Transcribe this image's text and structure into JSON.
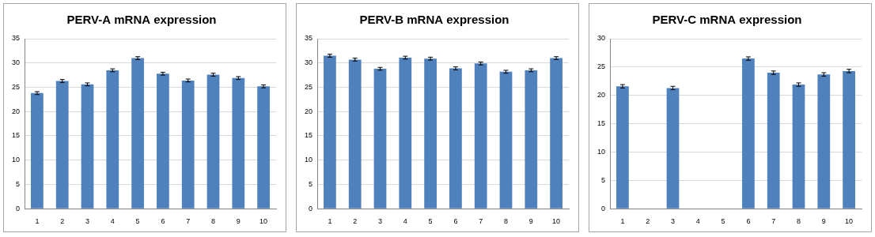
{
  "chart_data": [
    {
      "type": "bar",
      "title": "PERV-A mRNA expression",
      "categories": [
        "1",
        "2",
        "3",
        "4",
        "5",
        "6",
        "7",
        "8",
        "9",
        "10"
      ],
      "values": [
        23.8,
        26.3,
        25.6,
        28.5,
        31.0,
        27.8,
        26.4,
        27.6,
        26.9,
        25.2
      ],
      "errors": [
        0.3,
        0.3,
        0.3,
        0.3,
        0.3,
        0.3,
        0.3,
        0.3,
        0.3,
        0.3
      ],
      "color": "#4f81bd",
      "ylim": [
        0,
        35
      ],
      "yticks": [
        0,
        5,
        10,
        15,
        20,
        25,
        30,
        35
      ],
      "grid": true
    },
    {
      "type": "bar",
      "title": "PERV-B mRNA expression",
      "categories": [
        "1",
        "2",
        "3",
        "4",
        "5",
        "6",
        "7",
        "8",
        "9",
        "10"
      ],
      "values": [
        31.5,
        30.7,
        28.8,
        31.1,
        30.9,
        28.9,
        29.9,
        28.2,
        28.5,
        31.0
      ],
      "errors": [
        0.3,
        0.3,
        0.3,
        0.3,
        0.3,
        0.3,
        0.3,
        0.3,
        0.3,
        0.3
      ],
      "color": "#4f81bd",
      "ylim": [
        0,
        35
      ],
      "yticks": [
        0,
        5,
        10,
        15,
        20,
        25,
        30,
        35
      ],
      "grid": true
    },
    {
      "type": "bar",
      "title": "PERV-C mRNA expression",
      "categories": [
        "1",
        "2",
        "3",
        "4",
        "5",
        "6",
        "7",
        "8",
        "9",
        "10"
      ],
      "values": [
        21.6,
        null,
        21.3,
        null,
        null,
        26.5,
        24.0,
        21.9,
        23.7,
        24.3
      ],
      "errors": [
        0.3,
        null,
        0.3,
        null,
        null,
        0.3,
        0.3,
        0.3,
        0.3,
        0.3
      ],
      "color": "#4f81bd",
      "ylim": [
        0,
        30
      ],
      "yticks": [
        0,
        5,
        10,
        15,
        20,
        25,
        30
      ],
      "grid": true
    }
  ]
}
